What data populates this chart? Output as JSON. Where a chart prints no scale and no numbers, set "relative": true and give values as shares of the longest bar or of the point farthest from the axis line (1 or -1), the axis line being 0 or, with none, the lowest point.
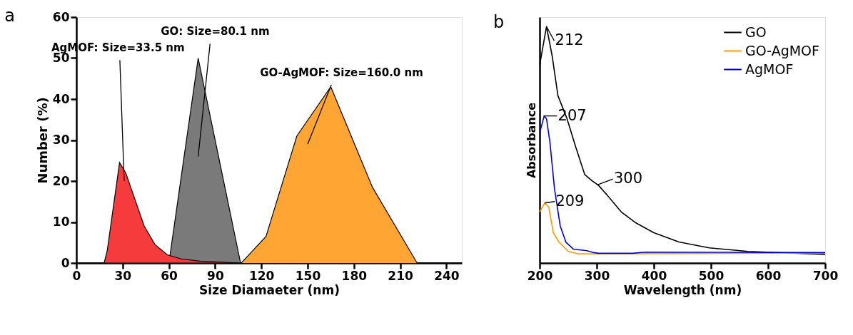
{
  "chart_data": [
    {
      "type": "area",
      "title": "a",
      "xlabel": "Size Diamaeter (nm)",
      "ylabel": "Number (%)",
      "xlim": [
        0,
        250
      ],
      "ylim": [
        0,
        60
      ],
      "xticks": [
        0,
        30,
        60,
        90,
        120,
        150,
        180,
        210,
        240
      ],
      "yticks": [
        0,
        10,
        20,
        30,
        40,
        50,
        60
      ],
      "grid": false,
      "legend": false,
      "series": [
        {
          "color": "#7a7a7a",
          "x": [
            60,
            79,
            106.5
          ],
          "values": [
            0,
            50,
            0
          ]
        },
        {
          "color": "#f53b3b",
          "x": [
            0,
            18,
            20,
            28,
            32,
            44,
            51,
            59,
            68,
            81,
            106,
            250
          ],
          "values": [
            0,
            0,
            3,
            24.5,
            22,
            9,
            4.5,
            2,
            1,
            0.4,
            0,
            0
          ]
        },
        {
          "color": "#ffa533",
          "x": [
            0,
            107,
            123,
            143,
            165,
            192,
            221,
            250
          ],
          "values": [
            0,
            0,
            6.5,
            31,
            43,
            18.5,
            0,
            0
          ]
        }
      ],
      "annotations": [
        "AgMOF: Size=33.5 nm",
        "GO: Size=80.1 nm",
        "GO-AgMOF: Size=160.0 nm"
      ]
    },
    {
      "type": "line",
      "title": "b",
      "xlabel": "Wavelength (nm)",
      "ylabel": "Absorbance",
      "relative": true,
      "xlim": [
        200,
        700
      ],
      "xticks": [
        200,
        300,
        400,
        500,
        600,
        700
      ],
      "grid": false,
      "legend": "top right",
      "series": [
        {
          "name": "GO",
          "color": "#000000",
          "x": [
            200,
            212,
            222,
            232,
            248,
            263,
            279,
            291,
            303,
            319,
            343,
            367,
            400,
            444,
            497,
            565,
            700
          ],
          "values": [
            0.836,
            1.0,
            0.875,
            0.708,
            0.61,
            0.492,
            0.374,
            0.349,
            0.329,
            0.285,
            0.216,
            0.172,
            0.128,
            0.089,
            0.064,
            0.049,
            0.036
          ]
        },
        {
          "name": "GO-AgMOF",
          "color": "#ff9900",
          "x": [
            200,
            209,
            216,
            224,
            234,
            250,
            267,
            303,
            450,
            700
          ],
          "values": [
            0.216,
            0.254,
            0.236,
            0.128,
            0.088,
            0.049,
            0.039,
            0.039,
            0.04,
            0.042
          ]
        },
        {
          "name": "AgMOF",
          "color": "#0000dd",
          "x": [
            200,
            208,
            212,
            218,
            226,
            236,
            246,
            259,
            283,
            295,
            303,
            363,
            384,
            700
          ],
          "values": [
            0.551,
            0.622,
            0.61,
            0.511,
            0.315,
            0.157,
            0.088,
            0.059,
            0.052,
            0.044,
            0.041,
            0.041,
            0.046,
            0.044
          ]
        }
      ],
      "annotations": [
        {
          "text": "212",
          "x": 212,
          "y": 1.0
        },
        {
          "text": "207",
          "x": 207,
          "y": 0.622
        },
        {
          "text": "300",
          "x": 300,
          "y": 0.33
        },
        {
          "text": "209",
          "x": 209,
          "y": 0.254
        }
      ]
    }
  ]
}
